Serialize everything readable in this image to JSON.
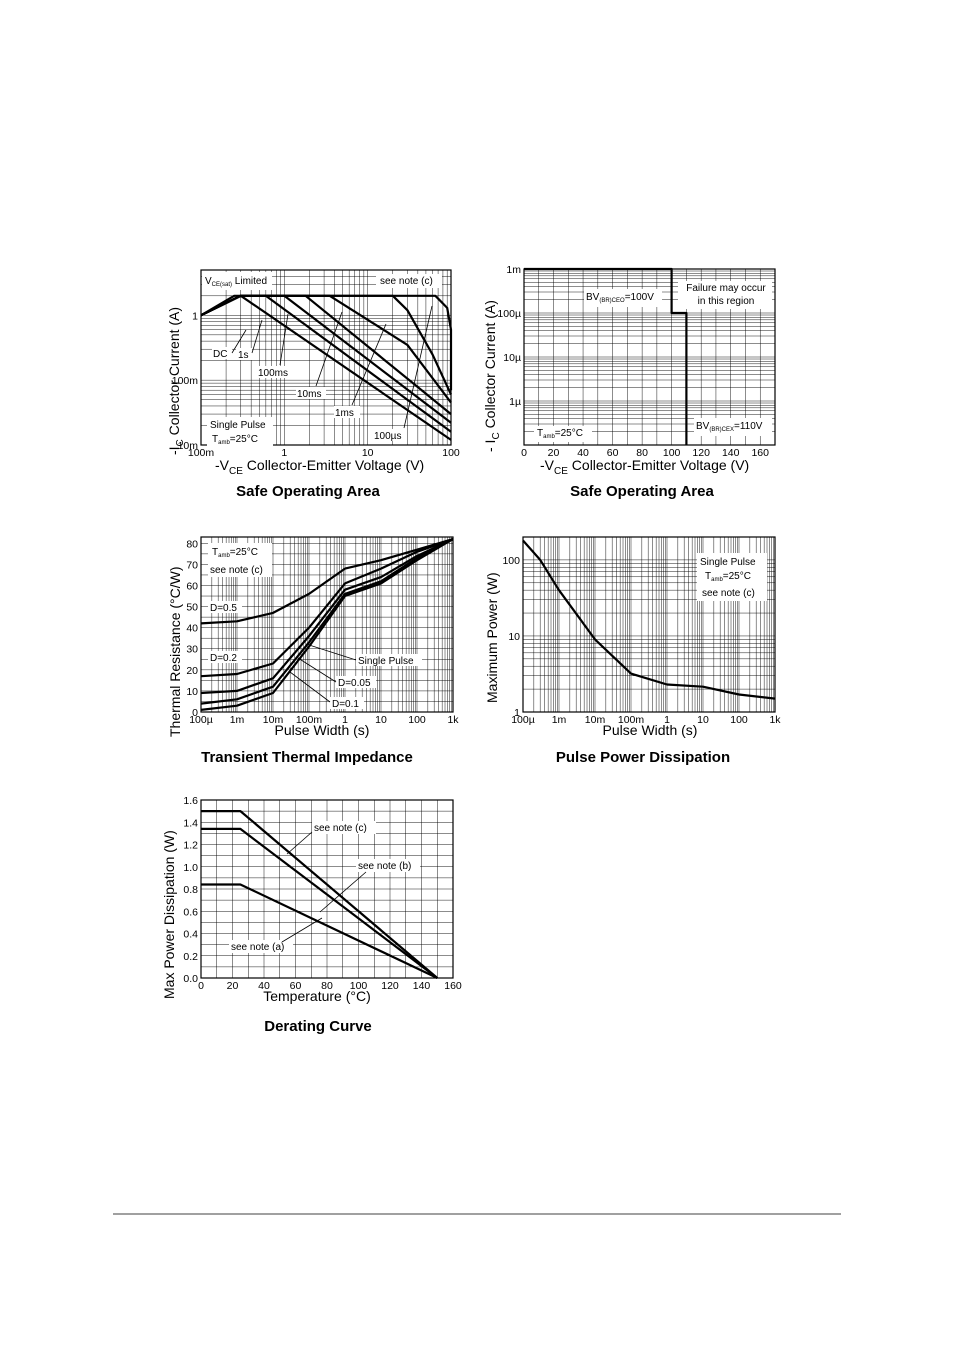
{
  "chart_data": [
    {
      "id": "soa1",
      "type": "line",
      "title": "Safe Operating Area",
      "xlabel": "-V",
      "xlabel_sub": "CE",
      "xlabel_rest": " Collector-Emitter Voltage (V)",
      "ylabel": "-I",
      "ylabel_sub": "C",
      "ylabel_rest": " Collector Current (A)",
      "xscale": "log",
      "yscale": "log",
      "xlim": [
        0.1,
        100
      ],
      "ylim": [
        0.01,
        5
      ],
      "xticks": [
        "100m",
        "1",
        "10",
        "100"
      ],
      "yticks": [
        "10m",
        "100m",
        "1"
      ],
      "annotations": {
        "vce_limited_a": "V",
        "vce_limited_sub": "CE(sat)",
        "vce_limited_b": " Limited",
        "note": "see note (c)",
        "pulse1": "Single Pulse",
        "pulse2_a": "T",
        "pulse2_sub": "amb",
        "pulse2_b": "=25°C"
      },
      "series": [
        {
          "name": "DC",
          "points": [
            [
              0.1,
              1.0
            ],
            [
              0.25,
              2.0
            ],
            [
              0.3,
              2.0
            ],
            [
              100,
              0.012
            ]
          ]
        },
        {
          "name": "1s",
          "points": [
            [
              0.1,
              1.0
            ],
            [
              0.3,
              2.0
            ],
            [
              0.6,
              2.0
            ],
            [
              100,
              0.016
            ]
          ]
        },
        {
          "name": "100ms",
          "points": [
            [
              0.1,
              1.0
            ],
            [
              0.3,
              2.0
            ],
            [
              1.0,
              2.0
            ],
            [
              100,
              0.022
            ]
          ]
        },
        {
          "name": "10ms",
          "points": [
            [
              0.1,
              1.0
            ],
            [
              0.3,
              2.0
            ],
            [
              1.8,
              2.0
            ],
            [
              100,
              0.03
            ]
          ]
        },
        {
          "name": "1ms",
          "points": [
            [
              0.1,
              1.0
            ],
            [
              0.3,
              2.0
            ],
            [
              3.5,
              2.0
            ],
            [
              30,
              0.35
            ],
            [
              100,
              0.045
            ]
          ]
        },
        {
          "name": "100µs",
          "points": [
            [
              0.1,
              1.0
            ],
            [
              0.3,
              2.0
            ],
            [
              20,
              2.0
            ],
            [
              30,
              1.2
            ],
            [
              60,
              0.25
            ],
            [
              100,
              0.06
            ]
          ]
        },
        {
          "name": "",
          "points": [
            [
              0.1,
              1.0
            ],
            [
              0.3,
              2.0
            ],
            [
              65,
              2.0
            ],
            [
              90,
              1.3
            ],
            [
              100,
              0.6
            ],
            [
              100,
              0.07
            ]
          ]
        }
      ]
    },
    {
      "id": "soa2",
      "type": "line",
      "title": "Safe Operating Area",
      "xlabel": "-V",
      "xlabel_sub": "CE",
      "xlabel_rest": " Collector-Emitter Voltage (V)",
      "ylabel": "- I",
      "ylabel_sub": "C",
      "ylabel_rest": " Collector Current (A)",
      "xscale": "linear",
      "yscale": "log",
      "xlim": [
        0,
        170
      ],
      "ylim": [
        1e-07,
        0.001
      ],
      "xticks": [
        "0",
        "20",
        "40",
        "60",
        "80",
        "100",
        "120",
        "140",
        "160"
      ],
      "yticks": [
        "1m",
        "100µ",
        "10µ",
        "1µ"
      ],
      "annotations": {
        "bv1_a": "BV",
        "bv1_sub": "(BR)CEO",
        "bv1_b": "=100V",
        "failure1": "Failure may occur",
        "failure2": "in this region",
        "tamb_a": "T",
        "tamb_sub": "amb",
        "tamb_b": "=25°C",
        "bv2_a": "BV",
        "bv2_sub": "(BR)CEX",
        "bv2_b": "=110V"
      },
      "series": [
        {
          "name": "",
          "points": [
            [
              0,
              0.001
            ],
            [
              100,
              0.001
            ],
            [
              100,
              0.0001
            ],
            [
              110,
              0.0001
            ],
            [
              110,
              1e-07
            ]
          ]
        }
      ]
    },
    {
      "id": "tti",
      "type": "line",
      "title": "Transient Thermal Impedance",
      "xlabel": "Pulse Width (s)",
      "ylabel": "Thermal Resistance (°C/W)",
      "xscale": "log",
      "yscale": "linear",
      "xlim": [
        0.0001,
        1000
      ],
      "ylim": [
        0,
        83
      ],
      "xticks": [
        "100µ",
        "1m",
        "10m",
        "100m",
        "1",
        "10",
        "100",
        "1k"
      ],
      "yticks": [
        "0",
        "10",
        "20",
        "30",
        "40",
        "50",
        "60",
        "70",
        "80"
      ],
      "annotations": {
        "tamb_a": "T",
        "tamb_sub": "amb",
        "tamb_b": "=25°C",
        "note": "see note (c)",
        "d05": "D=0.5",
        "d02": "D=0.2",
        "single": "Single Pulse",
        "d005": "D=0.05",
        "d01": "D=0.1"
      },
      "series": [
        {
          "name": "D=0.5",
          "points": [
            [
              0.0001,
              42
            ],
            [
              0.001,
              43
            ],
            [
              0.01,
              47
            ],
            [
              0.1,
              56
            ],
            [
              1,
              68
            ],
            [
              10,
              72
            ],
            [
              100,
              77
            ],
            [
              1000,
              82
            ]
          ]
        },
        {
          "name": "D=0.2",
          "points": [
            [
              0.0001,
              17
            ],
            [
              0.001,
              18
            ],
            [
              0.01,
              23
            ],
            [
              0.1,
              40
            ],
            [
              1,
              61
            ],
            [
              10,
              68
            ],
            [
              100,
              76
            ],
            [
              1000,
              82
            ]
          ]
        },
        {
          "name": "D=0.1",
          "points": [
            [
              0.0001,
              9
            ],
            [
              0.001,
              10
            ],
            [
              0.01,
              16
            ],
            [
              0.1,
              36
            ],
            [
              1,
              58
            ],
            [
              10,
              64
            ],
            [
              100,
              74
            ],
            [
              1000,
              82
            ]
          ]
        },
        {
          "name": "D=0.05",
          "points": [
            [
              0.0001,
              4
            ],
            [
              0.001,
              6
            ],
            [
              0.01,
              12
            ],
            [
              0.1,
              33
            ],
            [
              1,
              56
            ],
            [
              10,
              62
            ],
            [
              100,
              73
            ],
            [
              1000,
              82
            ]
          ]
        },
        {
          "name": "Single Pulse",
          "points": [
            [
              0.0001,
              1
            ],
            [
              0.001,
              3
            ],
            [
              0.01,
              9
            ],
            [
              0.1,
              31
            ],
            [
              1,
              55
            ],
            [
              10,
              61
            ],
            [
              100,
              72
            ],
            [
              1000,
              82
            ]
          ]
        }
      ]
    },
    {
      "id": "ppd",
      "type": "line",
      "title": "Pulse Power Dissipation",
      "xlabel": "Pulse Width (s)",
      "ylabel": "Maximum Power (W)",
      "xscale": "log",
      "yscale": "log",
      "xlim": [
        0.0001,
        1000
      ],
      "ylim": [
        1,
        200
      ],
      "xticks": [
        "100µ",
        "1m",
        "10m",
        "100m",
        "1",
        "10",
        "100",
        "1k"
      ],
      "yticks": [
        "1",
        "10",
        "100"
      ],
      "annotations": {
        "pulse": "Single Pulse",
        "tamb_a": "T",
        "tamb_sub": "amb",
        "tamb_b": "=25°C",
        "note": "see note (c)"
      },
      "series": [
        {
          "name": "",
          "points": [
            [
              0.0001,
              180
            ],
            [
              0.0003,
              100
            ],
            [
              0.001,
              40
            ],
            [
              0.01,
              9
            ],
            [
              0.1,
              3.2
            ],
            [
              1,
              2.3
            ],
            [
              10,
              2.15
            ],
            [
              100,
              1.7
            ],
            [
              1000,
              1.5
            ]
          ]
        }
      ]
    },
    {
      "id": "derating",
      "type": "line",
      "title": "Derating Curve",
      "xlabel": "Temperature (°C)",
      "ylabel": "Max Power Dissipation (W)",
      "xscale": "linear",
      "yscale": "linear",
      "xlim": [
        0,
        160
      ],
      "ylim": [
        0,
        1.6
      ],
      "xticks": [
        "0",
        "20",
        "40",
        "60",
        "80",
        "100",
        "120",
        "140",
        "160"
      ],
      "yticks": [
        "0.0",
        "0.2",
        "0.4",
        "0.6",
        "0.8",
        "1.0",
        "1.2",
        "1.4",
        "1.6"
      ],
      "annotations": {
        "c": "see note (c)",
        "b": "see note (b)",
        "a": "see note (a)"
      },
      "series": [
        {
          "name": "see note (c)",
          "points": [
            [
              0,
              1.5
            ],
            [
              25,
              1.5
            ],
            [
              150,
              0
            ]
          ]
        },
        {
          "name": "see note (b)",
          "points": [
            [
              0,
              1.34
            ],
            [
              25,
              1.34
            ],
            [
              150,
              0
            ]
          ]
        },
        {
          "name": "see note (a)",
          "points": [
            [
              0,
              0.84
            ],
            [
              25,
              0.84
            ],
            [
              150,
              0
            ]
          ]
        }
      ]
    }
  ]
}
